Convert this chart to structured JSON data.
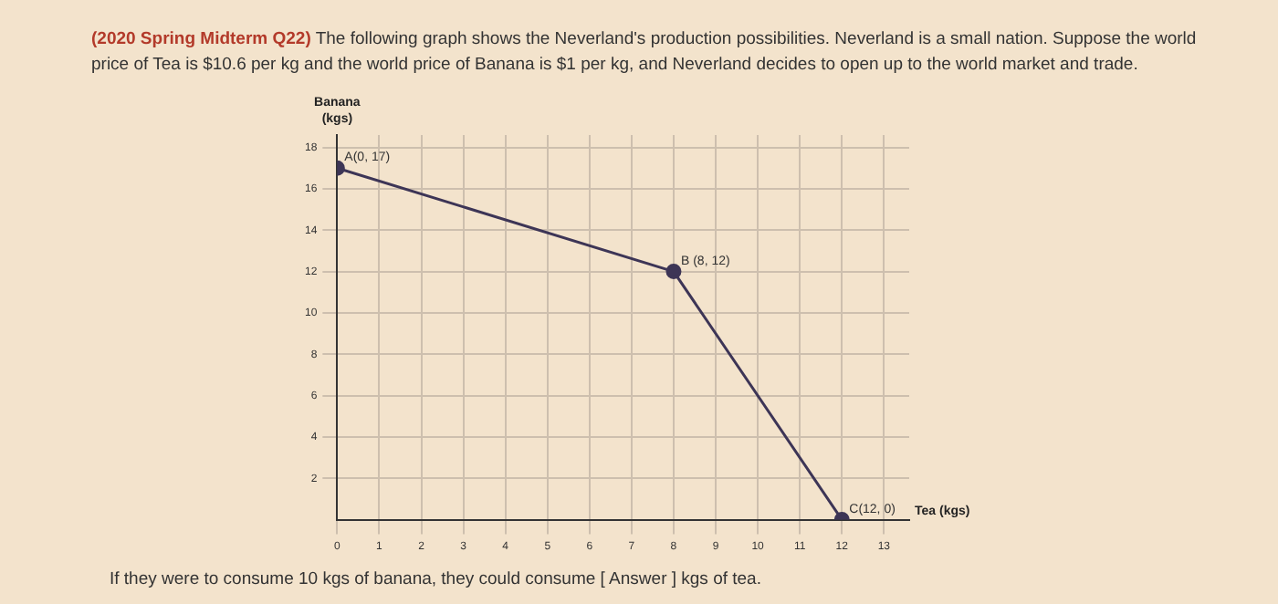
{
  "chart_data": {
    "type": "line",
    "title": "(2020 Spring Midterm Q22)",
    "subtitle": "The following graph shows the Neverland's production possibilities. Neverland is a small nation. Suppose the world price of Tea is $10.6 per kg and the world price of Banana is $1 per kg, and Neverland decides to open up to the world market and trade.",
    "xlabel": "Tea (kgs)",
    "ylabel": "Banana (kgs)",
    "x": [
      0,
      8,
      12
    ],
    "series": [
      {
        "color": "#3d3556",
        "values": [
          17,
          12,
          0
        ]
      }
    ],
    "xlim": [
      0,
      13.6
    ],
    "xticks": [
      0,
      1,
      2,
      3,
      4,
      5,
      6,
      7,
      8,
      9,
      10,
      11,
      12,
      13
    ],
    "ylim": [
      0,
      18.6
    ],
    "yticks": [
      2,
      4,
      6,
      8,
      10,
      12,
      14,
      16,
      18
    ],
    "grid": true,
    "marker": "circle",
    "line_style": "solid",
    "legend": false,
    "annotations": [
      {
        "text": "A(0, 17)",
        "x": 0,
        "y": 17
      },
      {
        "text": "B (8, 12)",
        "x": 8,
        "y": 12
      },
      {
        "text": "C(12, 0)",
        "x": 12,
        "y": 0
      },
      "If they were to consume 10 kgs of banana, they could consume [ Answer ] kgs of tea."
    ]
  }
}
